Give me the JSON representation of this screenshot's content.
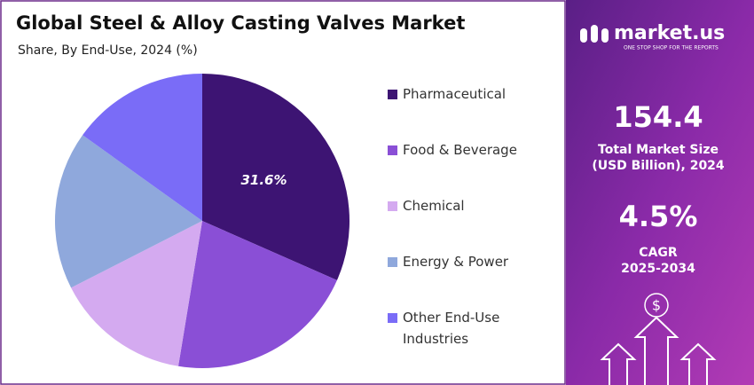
{
  "chart_data": {
    "type": "pie",
    "title": "Global Steel & Alloy Casting Valves Market",
    "subtitle": "Share, By End-Use, 2024 (%)",
    "categories": [
      "Pharmaceutical",
      "Food & Beverage",
      "Chemical",
      "Energy & Power",
      "Other End-Use Industries"
    ],
    "values": [
      31.6,
      21.0,
      14.9,
      17.4,
      15.1
    ],
    "value_labels": [
      "31.6%",
      null,
      null,
      null,
      null
    ],
    "colors": [
      "#3d1473",
      "#8a4fd6",
      "#d4aaf0",
      "#8fa8dc",
      "#7a6cf7"
    ],
    "legend": "right"
  },
  "panel": {
    "brand": "market.us",
    "tagline": "ONE STOP SHOP FOR THE REPORTS",
    "market_size": 154.4,
    "market_size_label": [
      "Total Market Size",
      "(USD Billion), 2024"
    ],
    "cagr": "4.5%",
    "cagr_label": [
      "CAGR",
      "2025-2034"
    ]
  }
}
